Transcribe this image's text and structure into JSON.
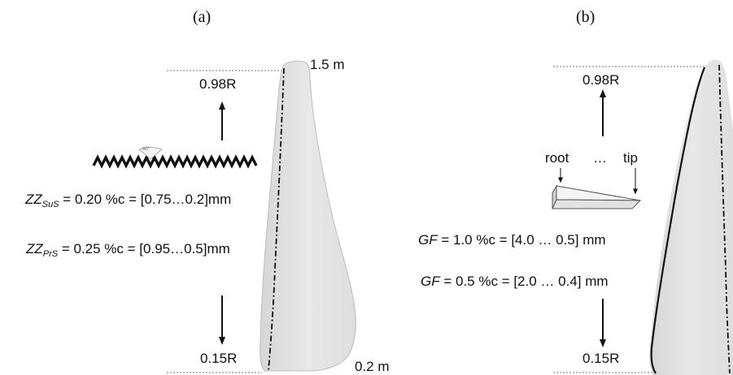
{
  "panel_a": {
    "label": "(a)",
    "tip_chord": "1.5 m",
    "root_chord": "0.2 m",
    "upper_station": "0.98R",
    "lower_station": "0.15R",
    "zigzag_angle": "60°",
    "zz_suction": {
      "symbol": "ZZ",
      "subscript": "SuS",
      "value": " = 0.20 %c = [0.75…0.2]mm"
    },
    "zz_pressure": {
      "symbol": "ZZ",
      "subscript": "PrS",
      "value": " = 0.25 %c = [0.95…0.5]mm"
    }
  },
  "panel_b": {
    "label": "(b)",
    "upper_station": "0.98R",
    "lower_station": "0.15R",
    "root_label": "root",
    "ellipsis": "…",
    "tip_label": "tip",
    "gf_first": {
      "symbol": "GF",
      "value": " = 1.0 %c = [4.0 … 0.5] mm"
    },
    "gf_second": {
      "symbol": "GF",
      "value": " = 0.5 %c = [2.0 … 0.4] mm"
    }
  },
  "colors": {
    "blade_fill": "#e3e3e3",
    "blade_stroke": "#b9b9b9",
    "ink": "#111111",
    "guide_line": "#777777"
  }
}
